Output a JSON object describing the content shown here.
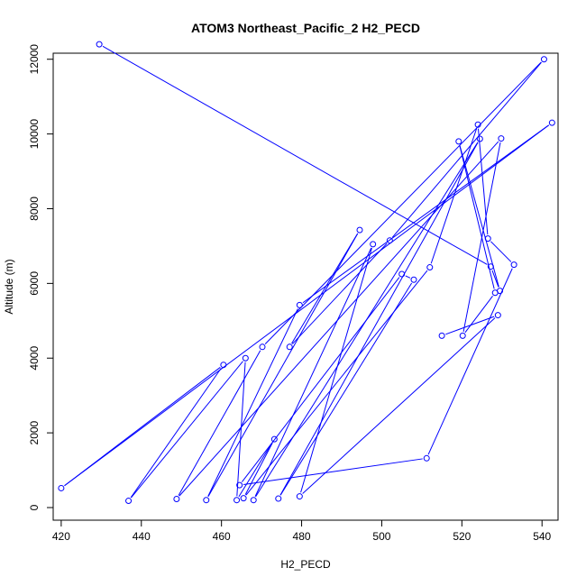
{
  "chart_data": {
    "type": "line",
    "title": "ATOM3 Northeast_Pacific_2 H2_PECD",
    "xlabel": "H2_PECD",
    "ylabel": "Altitude (m)",
    "xlim": [
      418,
      544
    ],
    "ylim": [
      0,
      12500
    ],
    "x_ticks": [
      420,
      440,
      460,
      480,
      500,
      520,
      540
    ],
    "y_ticks": [
      0,
      2000,
      4000,
      6000,
      8000,
      10000,
      12000
    ],
    "grid": false,
    "legend": "none",
    "series_color": "#0000ff",
    "point_style": "open-circle-with-lines",
    "points": [
      {
        "x": 429.5,
        "y": 12400
      },
      {
        "x": 527.2,
        "y": 6450
      },
      {
        "x": 529.5,
        "y": 5800
      },
      {
        "x": 519.2,
        "y": 9800
      },
      {
        "x": 528.3,
        "y": 5750
      },
      {
        "x": 520.2,
        "y": 4600
      },
      {
        "x": 529.8,
        "y": 9880
      },
      {
        "x": 448.8,
        "y": 230
      },
      {
        "x": 470.2,
        "y": 4300
      },
      {
        "x": 540.5,
        "y": 12000
      },
      {
        "x": 502.0,
        "y": 7150
      },
      {
        "x": 477.0,
        "y": 4300
      },
      {
        "x": 494.5,
        "y": 7430
      },
      {
        "x": 456.2,
        "y": 200
      },
      {
        "x": 479.5,
        "y": 5420
      },
      {
        "x": 542.5,
        "y": 10300
      },
      {
        "x": 420.0,
        "y": 520
      },
      {
        "x": 460.5,
        "y": 3820
      },
      {
        "x": 436.8,
        "y": 180
      },
      {
        "x": 466.0,
        "y": 4000
      },
      {
        "x": 463.8,
        "y": 200
      },
      {
        "x": 473.2,
        "y": 1830
      },
      {
        "x": 465.5,
        "y": 250
      },
      {
        "x": 512.0,
        "y": 6430
      },
      {
        "x": 524.0,
        "y": 10250
      },
      {
        "x": 526.5,
        "y": 7200
      },
      {
        "x": 533.0,
        "y": 6500
      },
      {
        "x": 511.2,
        "y": 1320
      },
      {
        "x": 464.5,
        "y": 600
      },
      {
        "x": 505.0,
        "y": 6250
      },
      {
        "x": 508.0,
        "y": 6100
      },
      {
        "x": 474.2,
        "y": 240
      },
      {
        "x": 524.5,
        "y": 9870
      },
      {
        "x": 468.0,
        "y": 200
      },
      {
        "x": 497.8,
        "y": 7050
      },
      {
        "x": 479.5,
        "y": 300
      },
      {
        "x": 529.0,
        "y": 5150
      },
      {
        "x": 515.0,
        "y": 4600
      }
    ]
  }
}
